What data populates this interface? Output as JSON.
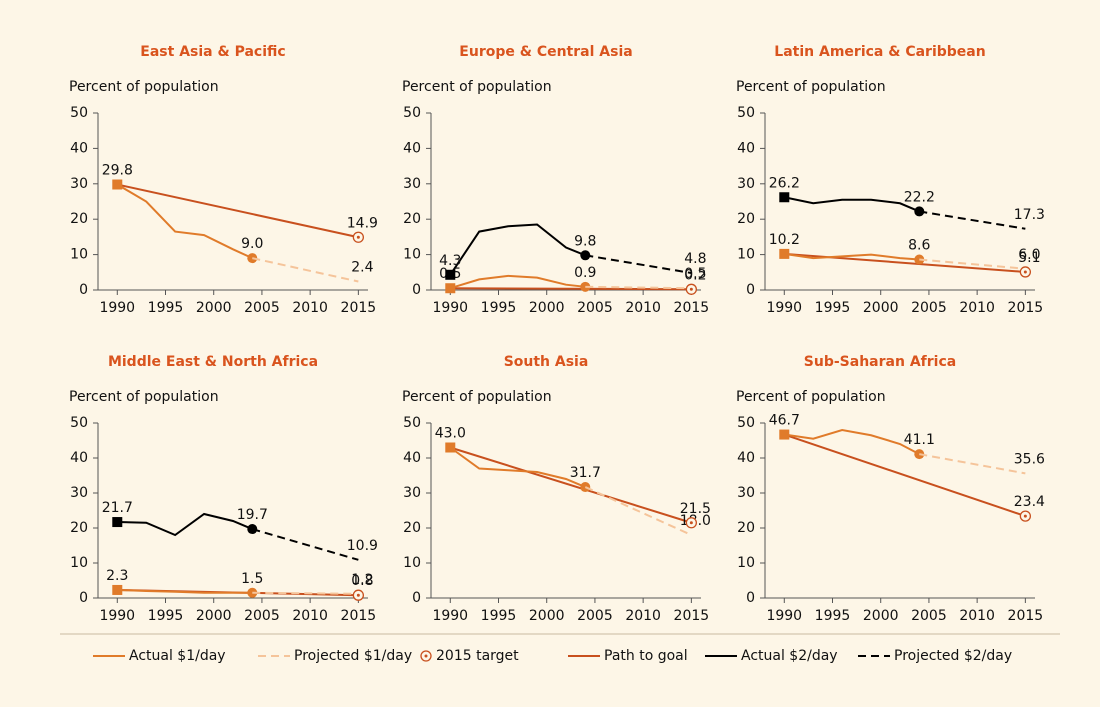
{
  "chart_data": [
    {
      "type": "line",
      "title": "East Asia & Pacific",
      "y_label": "Percent of population",
      "xlim": [
        1988,
        2016
      ],
      "xticks": [
        1990,
        1995,
        2000,
        2005,
        2010,
        2015
      ],
      "ylim": [
        0,
        50
      ],
      "yticks": [
        0,
        10,
        20,
        30,
        40,
        50
      ],
      "series": [
        {
          "name": "Actual $1/day",
          "color": "#e07b2a",
          "style": "solid",
          "x": [
            1990,
            1993,
            1996,
            1999,
            2002,
            2004
          ],
          "values": [
            29.8,
            25,
            16.5,
            15.5,
            11.5,
            9.0
          ],
          "value_labels": [
            "29.8",
            null,
            null,
            null,
            null,
            "9.0"
          ]
        },
        {
          "name": "Projected $1/day",
          "color": "#f5c49a",
          "style": "dashed",
          "x": [
            2004,
            2015
          ],
          "values": [
            9.0,
            2.4
          ],
          "value_labels": [
            null,
            "2.4"
          ]
        },
        {
          "name": "2015 target",
          "color": "#c8501e",
          "style": "target",
          "x": [
            2015
          ],
          "values": [
            14.9
          ]
        },
        {
          "name": "Path to goal",
          "color": "#c8501e",
          "style": "solid",
          "x": [
            1990,
            2015
          ],
          "values": [
            29.8,
            14.9
          ],
          "value_labels": [
            null,
            "14.9"
          ]
        }
      ]
    },
    {
      "type": "line",
      "title": "Europe & Central Asia",
      "y_label": "Percent of population",
      "xlim": [
        1988,
        2016
      ],
      "xticks": [
        1990,
        1995,
        2000,
        2005,
        2010,
        2015
      ],
      "ylim": [
        0,
        50
      ],
      "yticks": [
        0,
        10,
        20,
        30,
        40,
        50
      ],
      "series": [
        {
          "name": "Actual $1/day",
          "color": "#e07b2a",
          "style": "solid",
          "x": [
            1990,
            1993,
            1996,
            1999,
            2002,
            2004
          ],
          "values": [
            0.5,
            3,
            4,
            3.5,
            1.5,
            0.9
          ],
          "value_labels": [
            "0.5",
            null,
            null,
            null,
            null,
            "0.9"
          ]
        },
        {
          "name": "Projected $1/day",
          "color": "#f5c49a",
          "style": "dashed",
          "x": [
            2004,
            2015
          ],
          "values": [
            0.9,
            0.5
          ],
          "value_labels": [
            null,
            "0.5"
          ]
        },
        {
          "name": "2015 target",
          "color": "#c8501e",
          "style": "target",
          "x": [
            2015
          ],
          "values": [
            0.2
          ]
        },
        {
          "name": "Path to goal",
          "color": "#c8501e",
          "style": "solid",
          "x": [
            1990,
            2015
          ],
          "values": [
            0.5,
            0.2
          ],
          "value_labels": [
            null,
            "0.2"
          ]
        },
        {
          "name": "Actual $2/day",
          "color": "#000000",
          "style": "solid",
          "x": [
            1990,
            1993,
            1996,
            1999,
            2002,
            2004
          ],
          "values": [
            4.3,
            16.5,
            18,
            18.5,
            12,
            9.8
          ],
          "value_labels": [
            "4.3",
            null,
            null,
            null,
            null,
            "9.8"
          ]
        },
        {
          "name": "Projected $2/day",
          "color": "#000000",
          "style": "dashed",
          "x": [
            2004,
            2015
          ],
          "values": [
            9.8,
            4.8
          ],
          "value_labels": [
            null,
            "4.8"
          ]
        }
      ]
    },
    {
      "type": "line",
      "title": "Latin America & Caribbean",
      "y_label": "Percent of population",
      "xlim": [
        1988,
        2016
      ],
      "xticks": [
        1990,
        1995,
        2000,
        2005,
        2010,
        2015
      ],
      "ylim": [
        0,
        50
      ],
      "yticks": [
        0,
        10,
        20,
        30,
        40,
        50
      ],
      "series": [
        {
          "name": "Actual $1/day",
          "color": "#e07b2a",
          "style": "solid",
          "x": [
            1990,
            1993,
            1996,
            1999,
            2002,
            2004
          ],
          "values": [
            10.2,
            9,
            9.5,
            10,
            9,
            8.6
          ],
          "value_labels": [
            "10.2",
            null,
            null,
            null,
            null,
            "8.6"
          ]
        },
        {
          "name": "Projected $1/day",
          "color": "#f5c49a",
          "style": "dashed",
          "x": [
            2004,
            2015
          ],
          "values": [
            8.6,
            6.0
          ],
          "value_labels": [
            null,
            "6.0"
          ]
        },
        {
          "name": "2015 target",
          "color": "#c8501e",
          "style": "target",
          "x": [
            2015
          ],
          "values": [
            5.1
          ]
        },
        {
          "name": "Path to goal",
          "color": "#c8501e",
          "style": "solid",
          "x": [
            1990,
            2015
          ],
          "values": [
            10.2,
            5.1
          ],
          "value_labels": [
            null,
            "5.1"
          ]
        },
        {
          "name": "Actual $2/day",
          "color": "#000000",
          "style": "solid",
          "x": [
            1990,
            1993,
            1996,
            1999,
            2002,
            2004
          ],
          "values": [
            26.2,
            24.5,
            25.5,
            25.5,
            24.5,
            22.2
          ],
          "value_labels": [
            "26.2",
            null,
            null,
            null,
            null,
            "22.2"
          ]
        },
        {
          "name": "Projected $2/day",
          "color": "#000000",
          "style": "dashed",
          "x": [
            2004,
            2015
          ],
          "values": [
            22.2,
            17.3
          ],
          "value_labels": [
            null,
            "17.3"
          ]
        }
      ]
    },
    {
      "type": "line",
      "title": "Middle East & North Africa",
      "y_label": "Percent of population",
      "xlim": [
        1988,
        2016
      ],
      "xticks": [
        1990,
        1995,
        2000,
        2005,
        2010,
        2015
      ],
      "ylim": [
        0,
        50
      ],
      "yticks": [
        0,
        10,
        20,
        30,
        40,
        50
      ],
      "series": [
        {
          "name": "Actual $1/day",
          "color": "#e07b2a",
          "style": "solid",
          "x": [
            1990,
            1993,
            1996,
            1999,
            2002,
            2004
          ],
          "values": [
            2.3,
            2,
            1.8,
            1.5,
            1.5,
            1.5
          ],
          "value_labels": [
            "2.3",
            null,
            null,
            null,
            null,
            "1.5"
          ]
        },
        {
          "name": "Projected $1/day",
          "color": "#f5c49a",
          "style": "dashed",
          "x": [
            2004,
            2015
          ],
          "values": [
            1.5,
            1.2
          ],
          "value_labels": [
            null,
            "1.2"
          ]
        },
        {
          "name": "2015 target",
          "color": "#c8501e",
          "style": "target",
          "x": [
            2015
          ],
          "values": [
            0.8
          ]
        },
        {
          "name": "Path to goal",
          "color": "#c8501e",
          "style": "solid",
          "x": [
            1990,
            2015
          ],
          "values": [
            2.3,
            0.8
          ],
          "value_labels": [
            null,
            "0.8"
          ]
        },
        {
          "name": "Actual $2/day",
          "color": "#000000",
          "style": "solid",
          "x": [
            1990,
            1993,
            1996,
            1999,
            2002,
            2004
          ],
          "values": [
            21.7,
            21.5,
            18,
            24,
            22,
            19.7
          ],
          "value_labels": [
            "21.7",
            null,
            null,
            null,
            null,
            "19.7"
          ]
        },
        {
          "name": "Projected $2/day",
          "color": "#000000",
          "style": "dashed",
          "x": [
            2004,
            2015
          ],
          "values": [
            19.7,
            10.9
          ],
          "value_labels": [
            null,
            "10.9"
          ]
        }
      ]
    },
    {
      "type": "line",
      "title": "South Asia",
      "y_label": "Percent of population",
      "xlim": [
        1988,
        2016
      ],
      "xticks": [
        1990,
        1995,
        2000,
        2005,
        2010,
        2015
      ],
      "ylim": [
        0,
        50
      ],
      "yticks": [
        0,
        10,
        20,
        30,
        40,
        50
      ],
      "series": [
        {
          "name": "Actual $1/day",
          "color": "#e07b2a",
          "style": "solid",
          "x": [
            1990,
            1993,
            1996,
            1999,
            2002,
            2004
          ],
          "values": [
            43.0,
            37,
            36.5,
            36,
            34,
            31.7
          ],
          "value_labels": [
            "43.0",
            null,
            null,
            null,
            null,
            "31.7"
          ]
        },
        {
          "name": "Projected $1/day",
          "color": "#f5c49a",
          "style": "dashed",
          "x": [
            2004,
            2015
          ],
          "values": [
            31.7,
            18.0
          ],
          "value_labels": [
            null,
            "18.0"
          ]
        },
        {
          "name": "2015 target",
          "color": "#c8501e",
          "style": "target",
          "x": [
            2015
          ],
          "values": [
            21.5
          ]
        },
        {
          "name": "Path to goal",
          "color": "#c8501e",
          "style": "solid",
          "x": [
            1990,
            2015
          ],
          "values": [
            43.0,
            21.5
          ],
          "value_labels": [
            null,
            "21.5"
          ]
        }
      ]
    },
    {
      "type": "line",
      "title": "Sub-Saharan Africa",
      "y_label": "Percent of population",
      "xlim": [
        1988,
        2016
      ],
      "xticks": [
        1990,
        1995,
        2000,
        2005,
        2010,
        2015
      ],
      "ylim": [
        0,
        50
      ],
      "yticks": [
        0,
        10,
        20,
        30,
        40,
        50
      ],
      "series": [
        {
          "name": "Actual $1/day",
          "color": "#e07b2a",
          "style": "solid",
          "x": [
            1990,
            1993,
            1996,
            1999,
            2002,
            2004
          ],
          "values": [
            46.7,
            45.5,
            48,
            46.5,
            44,
            41.1
          ],
          "value_labels": [
            "46.7",
            null,
            null,
            null,
            null,
            "41.1"
          ]
        },
        {
          "name": "Projected $1/day",
          "color": "#f5c49a",
          "style": "dashed",
          "x": [
            2004,
            2015
          ],
          "values": [
            41.1,
            35.6
          ],
          "value_labels": [
            null,
            "35.6"
          ]
        },
        {
          "name": "2015 target",
          "color": "#c8501e",
          "style": "target",
          "x": [
            2015
          ],
          "values": [
            23.4
          ]
        },
        {
          "name": "Path to goal",
          "color": "#c8501e",
          "style": "solid",
          "x": [
            1990,
            2015
          ],
          "values": [
            46.7,
            23.4
          ],
          "value_labels": [
            null,
            "23.4"
          ]
        }
      ]
    }
  ]
}
